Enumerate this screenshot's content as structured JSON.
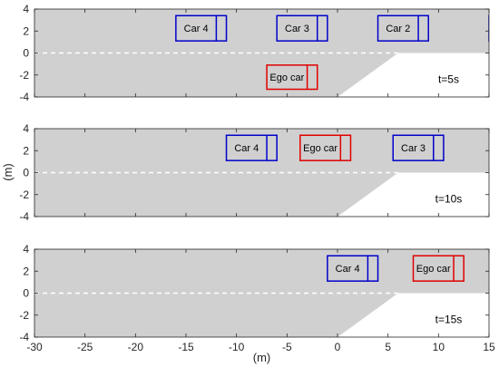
{
  "chart_data": {
    "type": "scatter",
    "ylabel": "(m)",
    "xlabel": "(m)",
    "xlim": [
      -30,
      15
    ],
    "ylim": [
      -4,
      4
    ],
    "xticks": [
      "-30",
      "-25",
      "-20",
      "-15",
      "-10",
      "-5",
      "0",
      "5",
      "10",
      "15"
    ],
    "yticks": [
      "4",
      "2",
      "0",
      "-2",
      "-4"
    ],
    "colors": {
      "road": "#d0d0d0",
      "other_car": "#0000cc",
      "ego_car": "#e00000",
      "lane_divider": "#ffffff"
    },
    "road": {
      "upper_lane_y": [
        0,
        4
      ],
      "merge_lane_y": [
        -4,
        0
      ],
      "merge_start_x": 0,
      "merge_end_x": 6
    },
    "panels": [
      {
        "time_label": "t=5s",
        "cars": [
          {
            "label": "Car 4",
            "x": [
              -16,
              -11
            ],
            "y": [
              1.1,
              3.4
            ],
            "kind": "other"
          },
          {
            "label": "Car 3",
            "x": [
              -6,
              -1
            ],
            "y": [
              1.1,
              3.4
            ],
            "kind": "other"
          },
          {
            "label": "Car 2",
            "x": [
              4,
              9
            ],
            "y": [
              1.1,
              3.4
            ],
            "kind": "other"
          },
          {
            "label": "",
            "x": [
              15,
              15.5
            ],
            "y": [
              1.1,
              3.4
            ],
            "kind": "other"
          },
          {
            "label": "Ego car",
            "x": [
              -7,
              -2
            ],
            "y": [
              -3.3,
              -1.1
            ],
            "kind": "ego"
          }
        ]
      },
      {
        "time_label": "t=10s",
        "cars": [
          {
            "label": "Car 4",
            "x": [
              -11,
              -6
            ],
            "y": [
              1.1,
              3.4
            ],
            "kind": "other"
          },
          {
            "label": "Ego car",
            "x": [
              -3.7,
              1.3
            ],
            "y": [
              1.1,
              3.4
            ],
            "kind": "ego"
          },
          {
            "label": "Car 3",
            "x": [
              5.5,
              10.5
            ],
            "y": [
              1.1,
              3.4
            ],
            "kind": "other"
          }
        ]
      },
      {
        "time_label": "t=15s",
        "cars": [
          {
            "label": "Car 4",
            "x": [
              -1,
              4
            ],
            "y": [
              1.1,
              3.4
            ],
            "kind": "other"
          },
          {
            "label": "Ego car",
            "x": [
              7.5,
              12.5
            ],
            "y": [
              1.1,
              3.4
            ],
            "kind": "ego"
          }
        ]
      }
    ]
  }
}
